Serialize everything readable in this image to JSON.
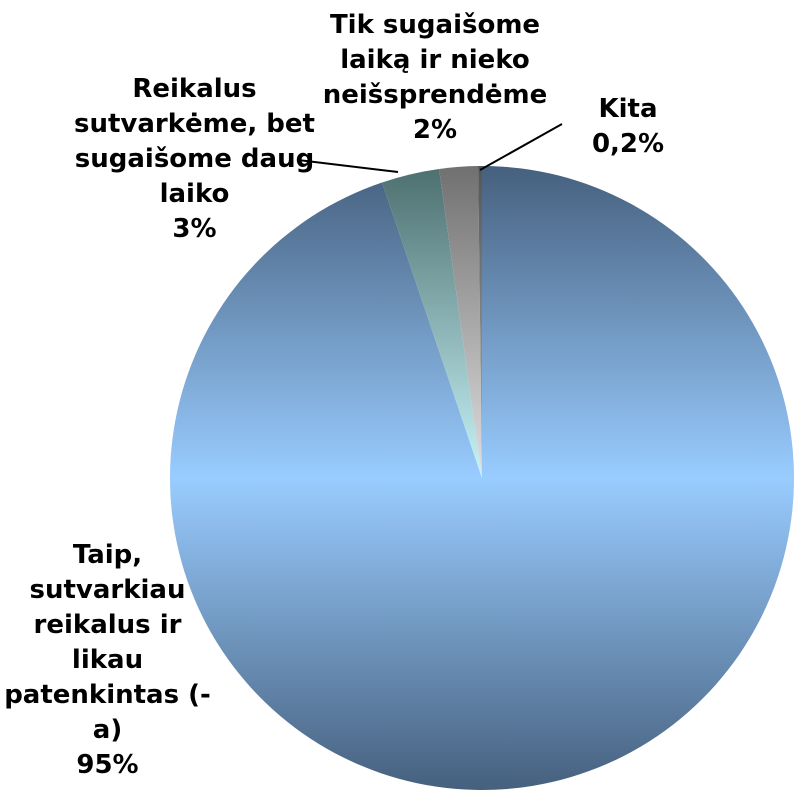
{
  "chart_data": {
    "type": "pie",
    "categories": [
      "Taip, sutvarkiau reikalus ir likau patenkintas (-a)",
      "Reikalus sutvarkėme, bet sugaišome daug laiko",
      "Tik sugaišome laiką ir nieko neišsprendėme",
      "Kita"
    ],
    "values": [
      95,
      3,
      2,
      0.2
    ],
    "value_labels": [
      "95%",
      "3%",
      "2%",
      "0,2%"
    ],
    "colors": [
      "#99ccff",
      "#c8f4f8",
      "#e0e0e0",
      "#b0b0b0"
    ]
  }
}
